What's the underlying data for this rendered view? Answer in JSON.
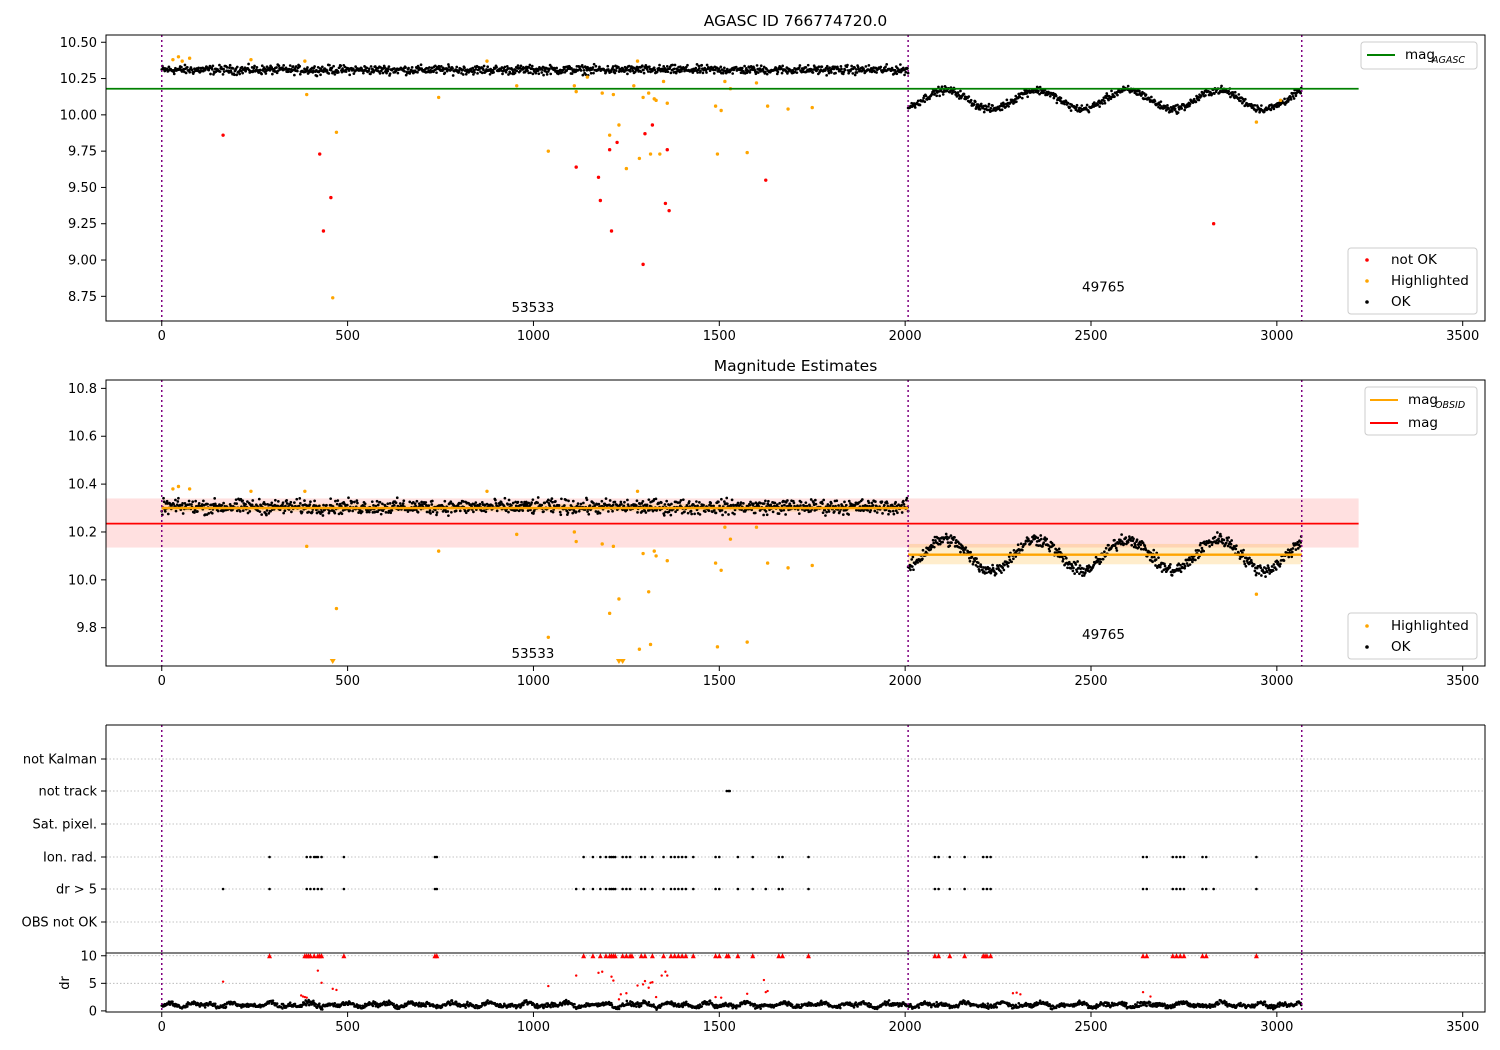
{
  "chart_data": [
    {
      "type": "scatter",
      "title": "AGASC ID 766774720.0",
      "xlim": [
        -150,
        3560
      ],
      "ylim": [
        8.58,
        10.55
      ],
      "x_ticks": [
        "0",
        "500",
        "1000",
        "1500",
        "2000",
        "2500",
        "3000",
        "3500"
      ],
      "y_ticks": [
        "8.75",
        "9.00",
        "9.25",
        "9.50",
        "9.75",
        "10.00",
        "10.25",
        "10.50"
      ],
      "obsid_boundaries": [
        0,
        2008,
        3067
      ],
      "obsid_labels": [
        {
          "text": "53533",
          "x": 1000,
          "y": 8.67
        },
        {
          "text": "49765",
          "x": 2535,
          "y": 8.81
        }
      ],
      "reference_line": {
        "name": "mag",
        "subscript": "AGASC",
        "value": 10.18,
        "x_range": [
          -150,
          3220
        ],
        "color": "#008000"
      },
      "ok_bands": [
        {
          "x_range": [
            0,
            2008
          ],
          "base": 10.31,
          "amp": 0.0,
          "period": 500,
          "phase": 0,
          "jitter": 0.045
        },
        {
          "x_range": [
            2008,
            3067
          ],
          "base": 10.105,
          "amp": 0.065,
          "period": 245,
          "phase": -1.0,
          "jitter": 0.04
        }
      ],
      "series": [
        {
          "name": "not OK",
          "color": "#ff0000",
          "points": [
            [
              165,
              9.86
            ],
            [
              425,
              9.73
            ],
            [
              435,
              9.2
            ],
            [
              455,
              9.43
            ],
            [
              1115,
              9.64
            ],
            [
              1175,
              9.57
            ],
            [
              1180,
              9.41
            ],
            [
              1205,
              9.76
            ],
            [
              1210,
              9.2
            ],
            [
              1225,
              9.81
            ],
            [
              1295,
              8.97
            ],
            [
              1300,
              9.87
            ],
            [
              1320,
              9.93
            ],
            [
              1355,
              9.39
            ],
            [
              1360,
              9.76
            ],
            [
              1365,
              9.34
            ],
            [
              1625,
              9.55
            ],
            [
              2830,
              9.25
            ]
          ]
        },
        {
          "name": "Highlighted",
          "color": "#ffa500",
          "points": [
            [
              30,
              10.38
            ],
            [
              45,
              10.4
            ],
            [
              55,
              10.37
            ],
            [
              75,
              10.39
            ],
            [
              240,
              10.38
            ],
            [
              385,
              10.37
            ],
            [
              390,
              10.14
            ],
            [
              460,
              8.74
            ],
            [
              470,
              9.88
            ],
            [
              745,
              10.12
            ],
            [
              875,
              10.37
            ],
            [
              955,
              10.2
            ],
            [
              1040,
              9.75
            ],
            [
              1110,
              10.2
            ],
            [
              1115,
              10.16
            ],
            [
              1145,
              10.26
            ],
            [
              1185,
              10.15
            ],
            [
              1205,
              9.86
            ],
            [
              1215,
              10.14
            ],
            [
              1230,
              9.93
            ],
            [
              1250,
              9.63
            ],
            [
              1270,
              10.2
            ],
            [
              1280,
              10.37
            ],
            [
              1285,
              9.7
            ],
            [
              1295,
              10.12
            ],
            [
              1310,
              10.15
            ],
            [
              1315,
              9.73
            ],
            [
              1325,
              10.11
            ],
            [
              1330,
              10.1
            ],
            [
              1340,
              9.73
            ],
            [
              1350,
              10.23
            ],
            [
              1360,
              10.08
            ],
            [
              1490,
              10.06
            ],
            [
              1495,
              9.73
            ],
            [
              1505,
              10.03
            ],
            [
              1515,
              10.23
            ],
            [
              1530,
              10.18
            ],
            [
              1575,
              9.74
            ],
            [
              1600,
              10.22
            ],
            [
              1630,
              10.06
            ],
            [
              1685,
              10.04
            ],
            [
              1750,
              10.05
            ],
            [
              2945,
              9.95
            ],
            [
              3010,
              10.1
            ]
          ]
        }
      ],
      "legends": [
        {
          "position": "top-right",
          "entries": [
            {
              "label": "mag",
              "subscript": "AGASC",
              "marker": "line",
              "color": "#008000"
            }
          ]
        },
        {
          "position": "lower-right",
          "entries": [
            {
              "label": "not OK",
              "marker": "dot",
              "color": "#ff0000"
            },
            {
              "label": "Highlighted",
              "marker": "dot",
              "color": "#ffa500"
            },
            {
              "label": "OK",
              "marker": "dot",
              "color": "#000000"
            }
          ]
        }
      ]
    },
    {
      "type": "scatter",
      "title": "Magnitude Estimates",
      "xlim": [
        -150,
        3560
      ],
      "ylim": [
        9.64,
        10.835
      ],
      "x_ticks": [
        "0",
        "500",
        "1000",
        "1500",
        "2000",
        "2500",
        "3000",
        "3500"
      ],
      "y_ticks": [
        "9.8",
        "10.0",
        "10.2",
        "10.4",
        "10.6",
        "10.8"
      ],
      "obsid_boundaries": [
        0,
        2008,
        3067
      ],
      "obsid_labels": [
        {
          "text": "53533",
          "x": 1000,
          "y": 9.69
        },
        {
          "text": "49765",
          "x": 2535,
          "y": 9.77
        }
      ],
      "mag_line": {
        "name": "mag",
        "value": 10.235,
        "band": [
          10.135,
          10.34
        ],
        "x_range": [
          -150,
          3220
        ],
        "color": "#ff0000"
      },
      "obsid_mags": [
        {
          "x_range": [
            0,
            2008
          ],
          "value": 10.3,
          "band": [
            10.285,
            10.318
          ]
        },
        {
          "x_range": [
            2008,
            3067
          ],
          "value": 10.105,
          "band": [
            10.065,
            10.15
          ]
        }
      ],
      "ok_bands": [
        {
          "x_range": [
            0,
            2008
          ],
          "base": 10.305,
          "amp": 0.0,
          "period": 500,
          "phase": 0,
          "jitter": 0.045
        },
        {
          "x_range": [
            2008,
            3067
          ],
          "base": 10.105,
          "amp": 0.065,
          "period": 245,
          "phase": -1.0,
          "jitter": 0.04
        }
      ],
      "series": [
        {
          "name": "Highlighted",
          "color": "#ffa500",
          "points": [
            [
              30,
              10.38
            ],
            [
              45,
              10.39
            ],
            [
              75,
              10.38
            ],
            [
              240,
              10.37
            ],
            [
              385,
              10.37
            ],
            [
              390,
              10.14
            ],
            [
              470,
              9.88
            ],
            [
              745,
              10.12
            ],
            [
              875,
              10.37
            ],
            [
              955,
              10.19
            ],
            [
              1040,
              9.76
            ],
            [
              1110,
              10.2
            ],
            [
              1115,
              10.16
            ],
            [
              1185,
              10.15
            ],
            [
              1205,
              9.86
            ],
            [
              1215,
              10.14
            ],
            [
              1230,
              9.92
            ],
            [
              1280,
              10.37
            ],
            [
              1285,
              9.71
            ],
            [
              1295,
              10.11
            ],
            [
              1310,
              9.95
            ],
            [
              1315,
              9.73
            ],
            [
              1325,
              10.12
            ],
            [
              1330,
              10.1
            ],
            [
              1360,
              10.08
            ],
            [
              1490,
              10.07
            ],
            [
              1495,
              9.72
            ],
            [
              1505,
              10.04
            ],
            [
              1515,
              10.22
            ],
            [
              1530,
              10.17
            ],
            [
              1575,
              9.74
            ],
            [
              1600,
              10.22
            ],
            [
              1630,
              10.07
            ],
            [
              1685,
              10.05
            ],
            [
              1750,
              10.06
            ],
            [
              2945,
              9.94
            ]
          ]
        }
      ],
      "offscale_markers": [
        460,
        1230,
        1240
      ],
      "legends": [
        {
          "position": "top-right",
          "entries": [
            {
              "label": "mag",
              "subscript": "OBSID",
              "marker": "line",
              "color": "#ffa500"
            },
            {
              "label": "mag",
              "marker": "line",
              "color": "#ff0000"
            }
          ]
        },
        {
          "position": "lower-right",
          "entries": [
            {
              "label": "Highlighted",
              "marker": "dot",
              "color": "#ffa500"
            },
            {
              "label": "OK",
              "marker": "dot",
              "color": "#000000"
            }
          ]
        }
      ]
    },
    {
      "type": "scatter",
      "xlim": [
        -150,
        3560
      ],
      "x_ticks": [
        "0",
        "500",
        "1000",
        "1500",
        "2000",
        "2500",
        "3000",
        "3500"
      ],
      "obsid_boundaries": [
        0,
        2008,
        3067
      ],
      "flag_rows": [
        "not Kalman",
        "not track",
        "Sat. pixel.",
        "Ion. rad.",
        "dr > 5",
        "OBS not OK"
      ],
      "flags": {
        "not Kalman": [],
        "not track": [
          1520,
          1525,
          1528
        ],
        "Sat. pixel.": [],
        "Ion. rad.": [
          290,
          390,
          400,
          410,
          415,
          420,
          430,
          490,
          735,
          740,
          1135,
          1160,
          1180,
          1195,
          1205,
          1210,
          1215,
          1220,
          1240,
          1250,
          1260,
          1290,
          1300,
          1320,
          1350,
          1370,
          1380,
          1390,
          1400,
          1410,
          1430,
          1490,
          1500,
          1550,
          1590,
          1660,
          1670,
          1740,
          2080,
          2090,
          2120,
          2160,
          2210,
          2220,
          2230,
          2640,
          2650,
          2720,
          2730,
          2740,
          2750,
          2800,
          2810,
          2945
        ],
        "dr > 5": [
          165,
          290,
          390,
          400,
          410,
          420,
          430,
          490,
          735,
          740,
          1115,
          1135,
          1160,
          1180,
          1195,
          1205,
          1210,
          1215,
          1220,
          1240,
          1250,
          1260,
          1290,
          1300,
          1320,
          1350,
          1370,
          1380,
          1390,
          1400,
          1410,
          1430,
          1490,
          1500,
          1550,
          1590,
          1625,
          1660,
          1670,
          1740,
          2080,
          2090,
          2120,
          2160,
          2210,
          2220,
          2230,
          2640,
          2650,
          2720,
          2730,
          2740,
          2750,
          2800,
          2810,
          2830,
          2945
        ],
        "OBS not OK": []
      }
    },
    {
      "type": "scatter",
      "ylabel": "dr",
      "xlim": [
        -150,
        3560
      ],
      "ylim": [
        -0.2,
        10.5
      ],
      "x_ticks": [
        "0",
        "500",
        "1000",
        "1500",
        "2000",
        "2500",
        "3000",
        "3500"
      ],
      "y_ticks": [
        "0",
        "5",
        "10"
      ],
      "obsid_boundaries": [
        0,
        2008,
        3067
      ],
      "dr_base": {
        "mean": 1.1,
        "jitter": 0.6
      },
      "capped_value": 10,
      "capped_x": [
        290,
        385,
        390,
        395,
        400,
        410,
        420,
        425,
        430,
        490,
        735,
        740,
        1135,
        1160,
        1180,
        1195,
        1205,
        1210,
        1215,
        1220,
        1240,
        1250,
        1260,
        1265,
        1290,
        1300,
        1320,
        1350,
        1370,
        1380,
        1390,
        1400,
        1410,
        1430,
        1490,
        1500,
        1520,
        1525,
        1550,
        1590,
        1660,
        1670,
        1740,
        2080,
        2090,
        2120,
        2160,
        2210,
        2215,
        2220,
        2230,
        2640,
        2650,
        2720,
        2730,
        2740,
        2750,
        2800,
        2810,
        2945
      ],
      "red_points": [
        [
          165,
          5.3
        ],
        [
          375,
          2.8
        ],
        [
          380,
          2.6
        ],
        [
          385,
          2.5
        ],
        [
          390,
          2.4
        ],
        [
          420,
          7.3
        ],
        [
          430,
          5.1
        ],
        [
          460,
          4.0
        ],
        [
          470,
          3.8
        ],
        [
          1040,
          4.5
        ],
        [
          1115,
          6.4
        ],
        [
          1175,
          6.9
        ],
        [
          1185,
          7.1
        ],
        [
          1210,
          6.2
        ],
        [
          1215,
          5.5
        ],
        [
          1230,
          2.1
        ],
        [
          1235,
          3.0
        ],
        [
          1250,
          3.2
        ],
        [
          1280,
          4.6
        ],
        [
          1295,
          4.8
        ],
        [
          1300,
          5.4
        ],
        [
          1310,
          4.2
        ],
        [
          1315,
          5.1
        ],
        [
          1320,
          5.2
        ],
        [
          1330,
          2.5
        ],
        [
          1345,
          6.4
        ],
        [
          1355,
          7.1
        ],
        [
          1360,
          6.4
        ],
        [
          1490,
          2.5
        ],
        [
          1505,
          2.4
        ],
        [
          1575,
          3.1
        ],
        [
          1620,
          5.6
        ],
        [
          1625,
          3.4
        ],
        [
          1630,
          3.6
        ],
        [
          2290,
          3.2
        ],
        [
          2300,
          3.3
        ],
        [
          2310,
          3.0
        ],
        [
          2640,
          3.4
        ],
        [
          2660,
          2.6
        ]
      ]
    }
  ]
}
